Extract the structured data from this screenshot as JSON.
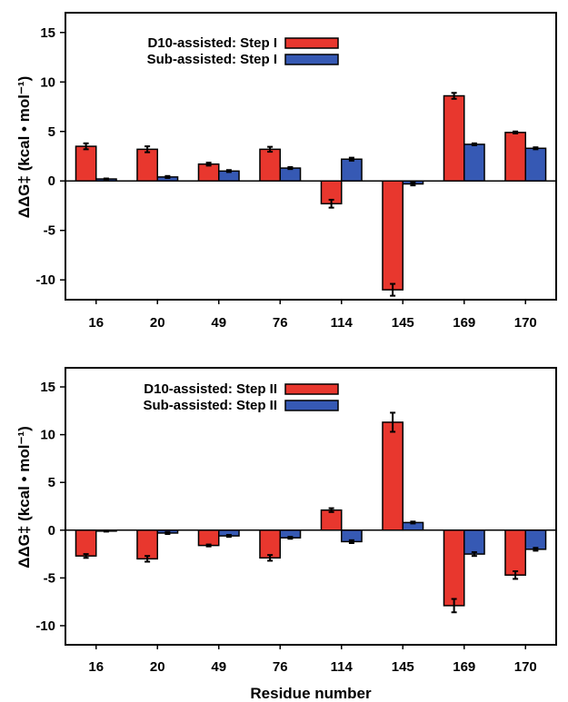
{
  "ylabel": "ΔΔG‡ (kcal • mol⁻¹)",
  "xlabel": "Residue number",
  "chart_data": [
    {
      "type": "bar",
      "categories": [
        "16",
        "20",
        "49",
        "76",
        "114",
        "145",
        "169",
        "170"
      ],
      "ylim": [
        -12,
        17
      ],
      "yticks": [
        15,
        10,
        5,
        0,
        -5,
        -10
      ],
      "ylabel": "ΔΔG‡ (kcal • mol⁻¹)",
      "xlabel": "",
      "legend_position": "top-left",
      "series": [
        {
          "name": "D10-assisted: Step I",
          "color": "#e8372e",
          "values": [
            3.5,
            3.2,
            1.7,
            3.2,
            -2.3,
            -11.0,
            8.6,
            4.9
          ],
          "errors": [
            0.3,
            0.3,
            0.15,
            0.25,
            0.4,
            0.6,
            0.3,
            0.1
          ]
        },
        {
          "name": "Sub-assisted: Step I",
          "color": "#3659b4",
          "values": [
            0.2,
            0.4,
            1.0,
            1.3,
            2.2,
            -0.3,
            3.7,
            3.3
          ],
          "errors": [
            0.05,
            0.1,
            0.1,
            0.1,
            0.15,
            0.15,
            0.1,
            0.1
          ]
        }
      ]
    },
    {
      "type": "bar",
      "categories": [
        "16",
        "20",
        "49",
        "76",
        "114",
        "145",
        "169",
        "170"
      ],
      "ylim": [
        -12,
        17
      ],
      "yticks": [
        15,
        10,
        5,
        0,
        -5,
        -10
      ],
      "ylabel": "ΔΔG‡ (kcal • mol⁻¹)",
      "xlabel": "Residue number",
      "legend_position": "top-left",
      "series": [
        {
          "name": "D10-assisted: Step II",
          "color": "#e8372e",
          "values": [
            -2.7,
            -3.0,
            -1.6,
            -2.9,
            2.1,
            11.3,
            -7.9,
            -4.7
          ],
          "errors": [
            0.2,
            0.3,
            0.1,
            0.3,
            0.2,
            1.0,
            0.7,
            0.4
          ]
        },
        {
          "name": "Sub-assisted: Step II",
          "color": "#3659b4",
          "values": [
            -0.1,
            -0.3,
            -0.6,
            -0.8,
            -1.2,
            0.8,
            -2.5,
            -2.0
          ],
          "errors": [
            0.05,
            0.1,
            0.1,
            0.1,
            0.15,
            0.1,
            0.2,
            0.15
          ]
        }
      ]
    }
  ]
}
